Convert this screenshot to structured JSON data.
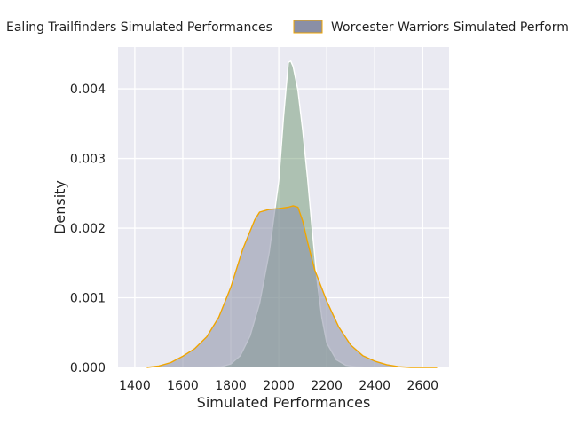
{
  "chart_data": {
    "type": "area",
    "xlabel": "Simulated Performances",
    "ylabel": "Density",
    "xlim": [
      1330,
      2710
    ],
    "ylim": [
      0,
      0.0046
    ],
    "grid": true,
    "legend_placement": "top",
    "x_ticks": [
      1400,
      1600,
      1800,
      2000,
      2200,
      2400,
      2600
    ],
    "x_tick_labels": [
      "1400",
      "1600",
      "1800",
      "2000",
      "2200",
      "2400",
      "2600"
    ],
    "y_ticks": [
      0,
      0.001,
      0.002,
      0.003,
      0.004
    ],
    "y_tick_labels": [
      "0.000",
      "0.001",
      "0.002",
      "0.003",
      "0.004"
    ],
    "series": [
      {
        "name": "Ealing Trailfinders Simulated Performances",
        "fill": "#4a7e4a",
        "fill_opacity": 0.38,
        "stroke": "#ffffff",
        "x": [
          1680,
          1760,
          1800,
          1840,
          1880,
          1920,
          1960,
          2000,
          2020,
          2040,
          2050,
          2060,
          2080,
          2100,
          2120,
          2140,
          2160,
          2180,
          2200,
          2240,
          2280,
          2320,
          2380
        ],
        "y": [
          0,
          1e-05,
          5e-05,
          0.00017,
          0.00045,
          0.00092,
          0.00165,
          0.00268,
          0.0036,
          0.00438,
          0.0044,
          0.00432,
          0.00398,
          0.0034,
          0.00272,
          0.00196,
          0.00125,
          0.00071,
          0.00035,
          0.00011,
          3e-05,
          1e-05,
          0
        ]
      },
      {
        "name": "Worcester Warriors Simulated Performances",
        "fill": "#8a8fa6",
        "fill_opacity": 0.55,
        "stroke": "#f0a500",
        "x": [
          1450,
          1500,
          1550,
          1600,
          1650,
          1700,
          1750,
          1800,
          1850,
          1900,
          1920,
          1960,
          2000,
          2040,
          2060,
          2080,
          2100,
          2120,
          2150,
          2200,
          2250,
          2300,
          2350,
          2400,
          2450,
          2500,
          2550,
          2600,
          2660
        ],
        "y": [
          0,
          2e-05,
          7e-05,
          0.00016,
          0.00027,
          0.00044,
          0.00072,
          0.00115,
          0.0017,
          0.00212,
          0.00223,
          0.00227,
          0.00228,
          0.0023,
          0.00232,
          0.0023,
          0.0021,
          0.0018,
          0.0014,
          0.00095,
          0.00058,
          0.00032,
          0.00017,
          9e-05,
          4e-05,
          1e-05,
          0,
          0,
          0
        ]
      }
    ]
  }
}
